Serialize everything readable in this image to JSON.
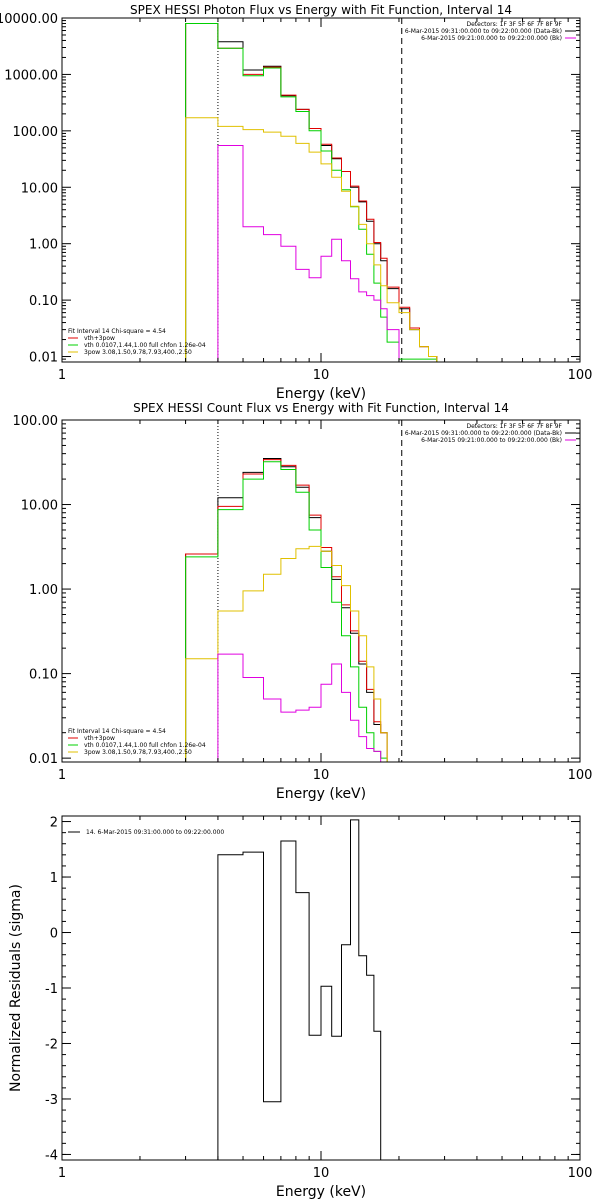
{
  "colors": {
    "black": "#000000",
    "red": "#e00000",
    "green": "#00d000",
    "yellow": "#e0c000",
    "magenta": "#e000e0",
    "purple": "#8000c0"
  },
  "edges": [
    3.0,
    4.0,
    5.0,
    6.0,
    7.0,
    8.0,
    9.0,
    10.0,
    11.0,
    12.0,
    13.0,
    14.0,
    15.0,
    16.0,
    17.0,
    18.0,
    20.0,
    22.0,
    24.0,
    26.0,
    28.0
  ],
  "xlim": [
    1,
    100
  ],
  "xticks": [
    {
      "v": 1,
      "label": "1"
    },
    {
      "v": 10,
      "label": "10"
    },
    {
      "v": 100,
      "label": "100"
    }
  ],
  "ref_lines": {
    "dotted": 4.0,
    "dashed": 20.5
  },
  "chart_data": [
    {
      "type": "line",
      "title": "SPEX HESSI Photon Flux vs Energy with Fit Function, Interval 14",
      "xlabel": "Energy (keV)",
      "ylabel": "",
      "scale": "log",
      "ylim": [
        0.008,
        10000
      ],
      "yticks": [
        {
          "v": 10000,
          "label": "10000.00"
        },
        {
          "v": 1000,
          "label": "1000.00"
        },
        {
          "v": 100,
          "label": "100.00"
        },
        {
          "v": 10,
          "label": "10.00"
        },
        {
          "v": 1,
          "label": "1.00"
        },
        {
          "v": 0.1,
          "label": "0.10"
        },
        {
          "v": 0.01,
          "label": "0.01"
        }
      ],
      "legend_tr": [
        "Detectors: 1F 3F 5F 6F 7F 8F 9F",
        "6-Mar-2015 09:31:00.000 to 09:22:00.000 (Data-Bk)",
        "6-Mar-2015 09:21:00.000 to 09:22:00.000 (Bk)"
      ],
      "legend_bl": [
        "Fit Interval 14    Chi-square = 4.54",
        "vth+3pow",
        "vth 0.0107,1.44,1.00   full chfon 1.26e-04",
        "3pow 3.08,1.50,9.78,7.93,400.,2.50"
      ],
      "series": [
        {
          "color": "black",
          "values": [
            8000,
            3800,
            1200,
            1400,
            420,
            240,
            110,
            55,
            32,
            19,
            10,
            5.5,
            2.5,
            1.0,
            0.5,
            0.16,
            0.07,
            0.03,
            0.015,
            0.01
          ]
        },
        {
          "color": "red",
          "values": [
            8000,
            2900,
            1000,
            1350,
            430,
            240,
            110,
            58,
            33,
            19,
            10.5,
            5.7,
            2.7,
            1.05,
            0.55,
            0.17,
            0.075,
            0.032,
            0.015,
            0.01
          ]
        },
        {
          "color": "green",
          "values": [
            8000,
            2900,
            950,
            1300,
            400,
            220,
            100,
            44,
            20,
            9,
            4.5,
            1.8,
            0.65,
            0.2,
            0.05,
            0.018,
            0.009,
            0.009,
            0.009,
            0.009
          ]
        },
        {
          "color": "yellow",
          "values": [
            170,
            120,
            105,
            95,
            80,
            60,
            42,
            26,
            15,
            8.5,
            4.6,
            2.2,
            1.0,
            0.42,
            0.18,
            0.09,
            0.06,
            0.03,
            0.015,
            0.01
          ]
        },
        {
          "color": "magenta",
          "values": [
            null,
            55,
            2.0,
            1.45,
            0.9,
            0.35,
            0.25,
            0.6,
            1.2,
            0.5,
            0.24,
            0.14,
            0.12,
            0.1,
            0.07,
            0.03,
            null,
            null,
            null,
            null
          ]
        }
      ]
    },
    {
      "type": "line",
      "title": "SPEX HESSI Count Flux vs Energy with Fit Function, Interval 14",
      "xlabel": "Energy (keV)",
      "ylabel": "",
      "scale": "log",
      "ylim": [
        0.009,
        100
      ],
      "yticks": [
        {
          "v": 100,
          "label": "100.00"
        },
        {
          "v": 10,
          "label": "10.00"
        },
        {
          "v": 1,
          "label": "1.00"
        },
        {
          "v": 0.1,
          "label": "0.10"
        },
        {
          "v": 0.01,
          "label": "0.01"
        }
      ],
      "legend_tr": [
        "Detectors: 1F 3F 5F 6F 7F 8F 9F",
        "6-Mar-2015 09:31:00.000 to 09:22:00.000 (Data-Bk)",
        "6-Mar-2015 09:21:00.000 to 09:22:00.000 (Bk)"
      ],
      "legend_bl": [
        "Fit Interval 14    Chi-square = 4.54",
        "vth+3pow",
        "vth 0.0107,1.44,1.00   full chfon 1.26e-04",
        "3pow 3.08,1.50,9.78,7.93,400.,2.50"
      ],
      "series": [
        {
          "color": "black",
          "values": [
            2.6,
            12.0,
            24.0,
            35.0,
            28.0,
            16.0,
            7.0,
            2.8,
            1.3,
            0.6,
            0.3,
            0.13,
            0.06,
            0.025,
            0.02
          ]
        },
        {
          "color": "red",
          "values": [
            2.6,
            9.5,
            23.0,
            34.0,
            29.0,
            17.0,
            7.5,
            3.1,
            1.4,
            0.65,
            0.32,
            0.14,
            0.065,
            0.027,
            0.02
          ]
        },
        {
          "color": "green",
          "values": [
            2.4,
            8.7,
            20.0,
            32.0,
            26.0,
            14.0,
            5.0,
            1.8,
            0.7,
            0.28,
            0.12,
            0.04,
            0.02,
            0.012,
            0.01
          ]
        },
        {
          "color": "yellow",
          "values": [
            0.15,
            0.55,
            0.95,
            1.5,
            2.3,
            3.0,
            3.2,
            2.8,
            1.9,
            1.1,
            0.55,
            0.28,
            0.12,
            0.05,
            0.02
          ]
        },
        {
          "color": "magenta",
          "values": [
            null,
            0.17,
            0.09,
            0.05,
            0.035,
            0.037,
            0.04,
            0.075,
            0.13,
            0.06,
            0.028,
            0.018,
            0.013,
            0.012,
            null
          ]
        }
      ]
    },
    {
      "type": "line",
      "title": "",
      "xlabel": "Energy (keV)",
      "ylabel": "Normalized Residuals (sigma)",
      "scale": "linear",
      "ylim": [
        -4.1,
        2.1
      ],
      "yticks": [
        {
          "v": 2,
          "label": "2"
        },
        {
          "v": 1,
          "label": "1"
        },
        {
          "v": 0,
          "label": "0"
        },
        {
          "v": -1,
          "label": "-1"
        },
        {
          "v": -2,
          "label": "-2"
        },
        {
          "v": -3,
          "label": "-3"
        },
        {
          "v": -4,
          "label": "-4"
        }
      ],
      "legend_tr": [],
      "legend_bl": [],
      "legend_tl": [
        "14.  6-Mar-2015 09:31:00.000 to 09:22:00.000"
      ],
      "series": [
        {
          "color": "black",
          "values": [
            null,
            1.4,
            1.45,
            -3.05,
            1.65,
            0.72,
            -1.85,
            -0.97,
            -1.87,
            -0.22,
            2.03,
            -0.42,
            -0.77,
            -1.78,
            null
          ]
        }
      ]
    }
  ]
}
